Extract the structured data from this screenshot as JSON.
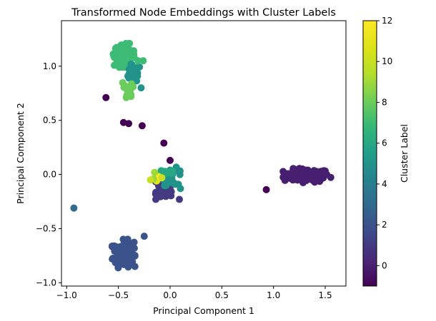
{
  "chart_data": {
    "type": "scatter",
    "title": "Transformed Node Embeddings with Cluster Labels",
    "xlabel": "Principal Component 1",
    "ylabel": "Principal Component 2",
    "xlim": [
      -1.05,
      1.7
    ],
    "ylim": [
      -1.03,
      1.42
    ],
    "xticks": [
      -1.0,
      -0.5,
      0.0,
      0.5,
      1.0,
      1.5
    ],
    "xtick_labels": [
      "−1.0",
      "−0.5",
      "0.0",
      "0.5",
      "1.0",
      "1.5"
    ],
    "yticks": [
      -1.0,
      -0.5,
      0.0,
      0.5,
      1.0
    ],
    "ytick_labels": [
      "−1.0",
      "−0.5",
      "0.0",
      "0.5",
      "1.0"
    ],
    "grid": false,
    "colormap": "viridis",
    "colorbar": {
      "label": "Cluster Label",
      "range": [
        -1,
        12
      ],
      "ticks": [
        0,
        2,
        4,
        6,
        8,
        10,
        12
      ],
      "tick_labels": [
        "0",
        "2",
        "4",
        "6",
        "8",
        "10",
        "12"
      ]
    },
    "clusters": [
      {
        "label": 0,
        "center": [
          1.32,
          -0.01
        ],
        "spread": [
          0.11,
          0.03
        ],
        "count": 110
      },
      {
        "label": 2,
        "center": [
          -0.45,
          -0.73
        ],
        "spread": [
          0.05,
          0.06
        ],
        "count": 130
      },
      {
        "label": 7,
        "center": [
          -0.44,
          1.1
        ],
        "spread": [
          0.05,
          0.05
        ],
        "count": 120
      },
      {
        "label": 5,
        "center": [
          -0.36,
          0.93
        ],
        "spread": [
          0.04,
          0.04
        ],
        "count": 25
      },
      {
        "label": 8,
        "center": [
          -0.42,
          0.76
        ],
        "spread": [
          0.04,
          0.06
        ],
        "count": 14
      },
      {
        "label": 1,
        "center": [
          -0.05,
          -0.12
        ],
        "spread": [
          0.04,
          0.05
        ],
        "count": 80
      },
      {
        "label": 5,
        "center": [
          0.03,
          -0.02
        ],
        "spread": [
          0.05,
          0.04
        ],
        "count": 25
      },
      {
        "label": 6,
        "center": [
          -0.05,
          0.02
        ],
        "spread": [
          0.05,
          0.02
        ],
        "count": 10
      }
    ],
    "points": [
      {
        "x": -0.31,
        "y": 1.05,
        "label": 7
      },
      {
        "x": -0.26,
        "y": 1.05,
        "label": 7
      },
      {
        "x": -0.28,
        "y": 0.8,
        "label": 5
      },
      {
        "x": -0.62,
        "y": 0.71,
        "label": -1
      },
      {
        "x": -0.45,
        "y": 0.48,
        "label": -1
      },
      {
        "x": -0.4,
        "y": 0.47,
        "label": -1
      },
      {
        "x": -0.27,
        "y": 0.45,
        "label": -1
      },
      {
        "x": -0.06,
        "y": 0.29,
        "label": -1
      },
      {
        "x": 0.0,
        "y": 0.13,
        "label": -1
      },
      {
        "x": 0.93,
        "y": -0.14,
        "label": -1
      },
      {
        "x": -0.93,
        "y": -0.31,
        "label": 3
      },
      {
        "x": -0.25,
        "y": -0.57,
        "label": 2
      },
      {
        "x": -0.13,
        "y": -0.06,
        "label": 11
      },
      {
        "x": -0.11,
        "y": -0.02,
        "label": 12
      },
      {
        "x": -0.16,
        "y": -0.04,
        "label": 9
      },
      {
        "x": -0.08,
        "y": -0.03,
        "label": 10
      },
      {
        "x": -0.19,
        "y": -0.05,
        "label": 10
      },
      {
        "x": -0.15,
        "y": 0.02,
        "label": 9
      },
      {
        "x": 0.1,
        "y": -0.13,
        "label": 5
      },
      {
        "x": 0.08,
        "y": -0.09,
        "label": 5
      },
      {
        "x": -0.14,
        "y": -0.18,
        "label": 1
      },
      {
        "x": 0.09,
        "y": -0.23,
        "label": 1
      }
    ]
  }
}
